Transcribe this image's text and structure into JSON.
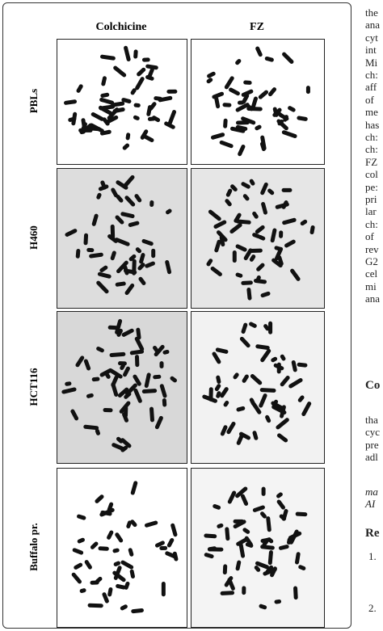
{
  "figure": {
    "column_headers": [
      "Colchicine",
      "FZ"
    ],
    "row_labels": [
      "PBLs",
      "H460",
      "HCT116",
      "Buffalo pr."
    ]
  },
  "text": {
    "paragraph_1": [
      "the",
      "ana",
      "cyt",
      "int",
      "Mi",
      "ch:",
      "aff",
      "of",
      "me",
      "has",
      "ch:",
      "ch:",
      "FZ",
      "col",
      "pe:",
      "pri",
      "lar",
      "ch:",
      "of",
      "rev",
      "G2",
      "cel",
      "mi",
      "ana"
    ],
    "heading_1": "Co",
    "paragraph_2": [
      "tha",
      "cyc",
      "pre",
      "adl"
    ],
    "paragraph_3": [
      "ma",
      "AI"
    ],
    "heading_2": "Re",
    "references": [
      "1.",
      "2."
    ]
  }
}
